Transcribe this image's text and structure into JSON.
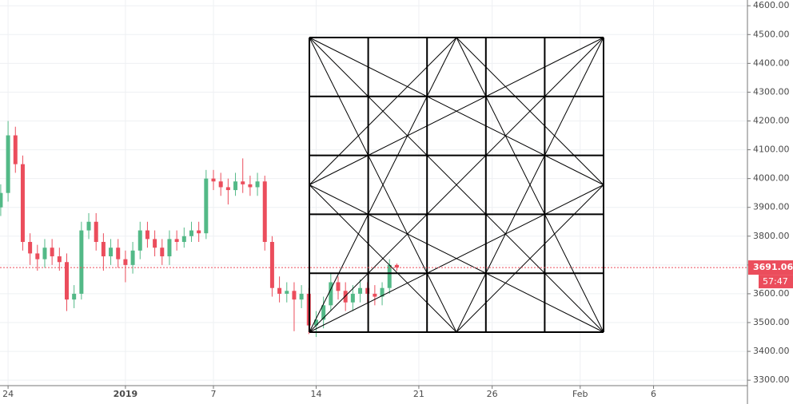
{
  "chart_data": {
    "type": "candlestick",
    "x": [
      -0.5,
      0,
      0.5,
      1,
      1.5,
      2,
      2.5,
      3,
      3.5,
      4,
      4.5,
      5,
      5.5,
      6,
      6.5,
      7,
      7.5,
      8,
      8.5,
      9,
      9.5,
      10,
      10.5,
      11,
      11.5,
      12,
      12.5,
      13,
      13.5,
      14,
      14.5,
      15,
      15.5,
      16,
      16.5,
      17,
      17.5,
      18,
      18.5,
      19,
      19.5,
      20,
      20.5,
      21,
      21.5,
      22,
      22.5,
      23,
      23.5,
      24,
      24.5,
      25,
      25.5,
      26,
      26.5
    ],
    "open": [
      3900,
      3950,
      4150,
      4050,
      3780,
      3740,
      3720,
      3760,
      3730,
      3710,
      3580,
      3600,
      3820,
      3850,
      3780,
      3730,
      3760,
      3720,
      3700,
      3750,
      3820,
      3790,
      3760,
      3730,
      3790,
      3780,
      3800,
      3820,
      3810,
      4000,
      3990,
      3970,
      3960,
      3990,
      3980,
      3970,
      3990,
      3780,
      3620,
      3600,
      3610,
      3580,
      3600,
      3490,
      3510,
      3560,
      3640,
      3610,
      3570,
      3600,
      3620,
      3600,
      3590,
      3620,
      3700
    ],
    "high": [
      3980,
      4200,
      4180,
      4080,
      3810,
      3770,
      3790,
      3790,
      3760,
      3740,
      3630,
      3850,
      3880,
      3880,
      3810,
      3790,
      3790,
      3750,
      3780,
      3850,
      3850,
      3820,
      3790,
      3820,
      3820,
      3830,
      3850,
      3850,
      4030,
      4030,
      4020,
      4000,
      4020,
      4070,
      4010,
      4020,
      4010,
      3800,
      3660,
      3640,
      3640,
      3630,
      3620,
      3540,
      3590,
      3670,
      3660,
      3640,
      3630,
      3650,
      3640,
      3630,
      3640,
      3720,
      3705
    ],
    "low": [
      3870,
      3920,
      4020,
      3750,
      3700,
      3680,
      3690,
      3700,
      3680,
      3540,
      3550,
      3580,
      3790,
      3750,
      3680,
      3700,
      3690,
      3640,
      3670,
      3720,
      3760,
      3730,
      3700,
      3700,
      3750,
      3760,
      3780,
      3780,
      3790,
      3960,
      3940,
      3910,
      3940,
      3950,
      3940,
      3940,
      3750,
      3590,
      3570,
      3570,
      3470,
      3550,
      3460,
      3450,
      3480,
      3540,
      3580,
      3540,
      3540,
      3570,
      3570,
      3560,
      3560,
      3600,
      3680
    ],
    "close": [
      3950,
      4150,
      4050,
      3780,
      3740,
      3720,
      3760,
      3730,
      3710,
      3580,
      3600,
      3820,
      3850,
      3780,
      3730,
      3760,
      3720,
      3700,
      3750,
      3820,
      3790,
      3760,
      3730,
      3790,
      3780,
      3800,
      3820,
      3810,
      4000,
      3990,
      3970,
      3960,
      3990,
      3980,
      3970,
      3990,
      3780,
      3620,
      3600,
      3610,
      3580,
      3600,
      3490,
      3510,
      3560,
      3640,
      3610,
      3570,
      3600,
      3620,
      3600,
      3590,
      3620,
      3700,
      3691.06
    ],
    "up_color": "#53b987",
    "down_color": "#eb4d5c",
    "countdown": "57:47",
    "xlim": [
      -0.55,
      50.4
    ],
    "xticks": [
      {
        "value": 0,
        "label": "24"
      },
      {
        "value": 8,
        "label": "2019"
      },
      {
        "value": 14,
        "label": "7"
      },
      {
        "value": 21,
        "label": "14"
      },
      {
        "value": 28,
        "label": "21"
      },
      {
        "value": 33,
        "label": "26"
      },
      {
        "value": 39,
        "label": "Feb"
      },
      {
        "value": 44,
        "label": "6"
      }
    ],
    "ylim": [
      3281,
      4620
    ],
    "yticks": [
      {
        "value": 3300,
        "label": "3300.00"
      },
      {
        "value": 3400,
        "label": "3400.00"
      },
      {
        "value": 3500,
        "label": "3500.00"
      },
      {
        "value": 3600,
        "label": "3600.00"
      },
      {
        "value": 3700,
        "label": "3700.00"
      },
      {
        "value": 3800,
        "label": "3800.00"
      },
      {
        "value": 3900,
        "label": "3900.00"
      },
      {
        "value": 4000,
        "label": "4000.00"
      },
      {
        "value": 4100,
        "label": "4100.00"
      },
      {
        "value": 4200,
        "label": "4200.00"
      },
      {
        "value": 4300,
        "label": "4300.00"
      },
      {
        "value": 4400,
        "label": "4400.00"
      },
      {
        "value": 4500,
        "label": "4500.00"
      },
      {
        "value": 4600,
        "label": "4600.00"
      }
    ],
    "grid": true
  }
}
